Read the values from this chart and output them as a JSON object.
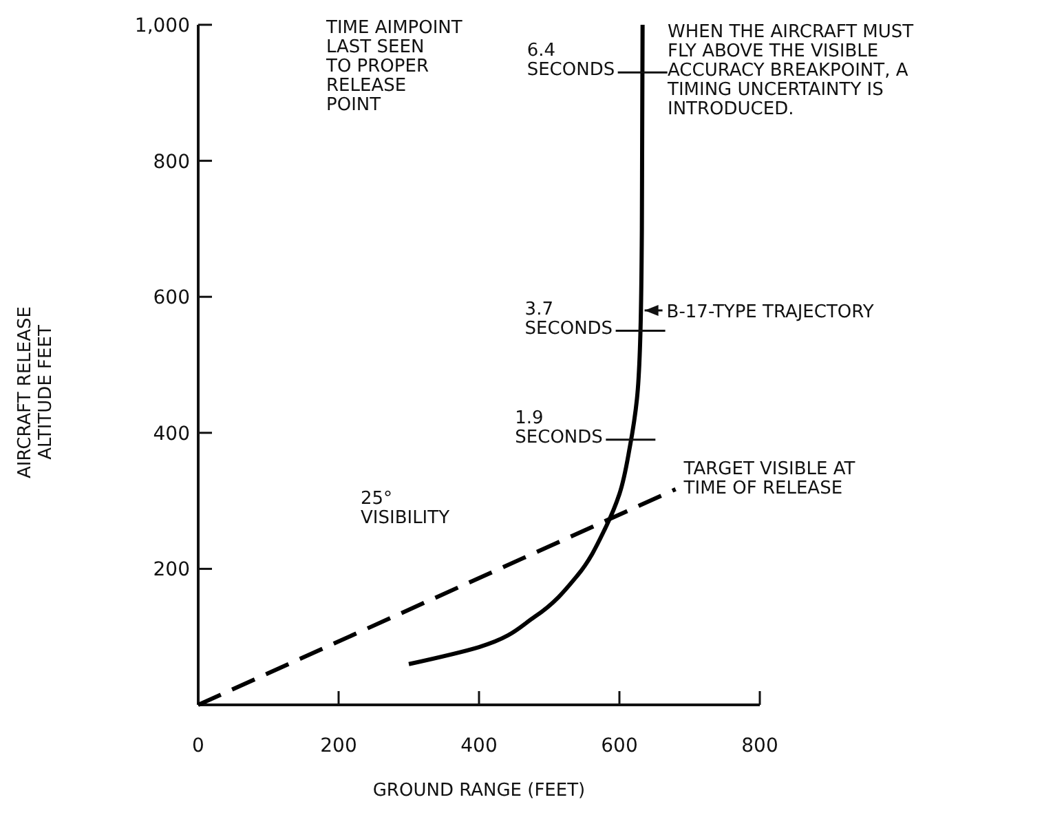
{
  "chart_data": {
    "type": "line",
    "xlabel": "GROUND RANGE (FEET)",
    "ylabel": "AIRCRAFT RELEASE\nALTITUDE FEET",
    "xlim": [
      0,
      800
    ],
    "ylim": [
      0,
      1000
    ],
    "xticks": [
      0,
      200,
      400,
      600,
      800
    ],
    "yticks": [
      {
        "value": 0,
        "label": null
      },
      200,
      400,
      600,
      800,
      {
        "value": 1000,
        "label": "1,000"
      }
    ],
    "grid": false,
    "marker": "none",
    "series": [
      {
        "color": "#000000",
        "line_style": "solid",
        "x": [
          300,
          400,
          480,
          540,
          580,
          600,
          615,
          625,
          630,
          632,
          633
        ],
        "values": [
          60,
          85,
          130,
          190,
          260,
          310,
          380,
          450,
          550,
          700,
          1000
        ]
      },
      {
        "color": "#000000",
        "line_style": "dashed",
        "x": [
          0,
          680
        ],
        "values": [
          0,
          317
        ]
      }
    ],
    "annotations": [
      "TIME AIMPOINT\nLAST SEEN\nTO PROPER\nRELEASE\nPOINT",
      {
        "text": "6.4\nSECONDS",
        "x": 633,
        "y": 930
      },
      {
        "text": "3.7\nSECONDS",
        "x": 630,
        "y": 550
      },
      {
        "text": "1.9\nSECONDS",
        "x": 616,
        "y": 390
      },
      "WHEN THE AIRCRAFT MUST\nFLY ABOVE THE VISIBLE\nACCURACY BREAKPOINT, A\nTIMING UNCERTAINTY IS\nINTRODUCED.",
      {
        "text": "B-17-TYPE TRAJECTORY",
        "x": 630,
        "y": 580
      },
      {
        "text": "TARGET VISIBLE AT\nTIME OF RELEASE",
        "x": 680,
        "y": 317
      },
      "25°\nVISIBILITY"
    ]
  }
}
